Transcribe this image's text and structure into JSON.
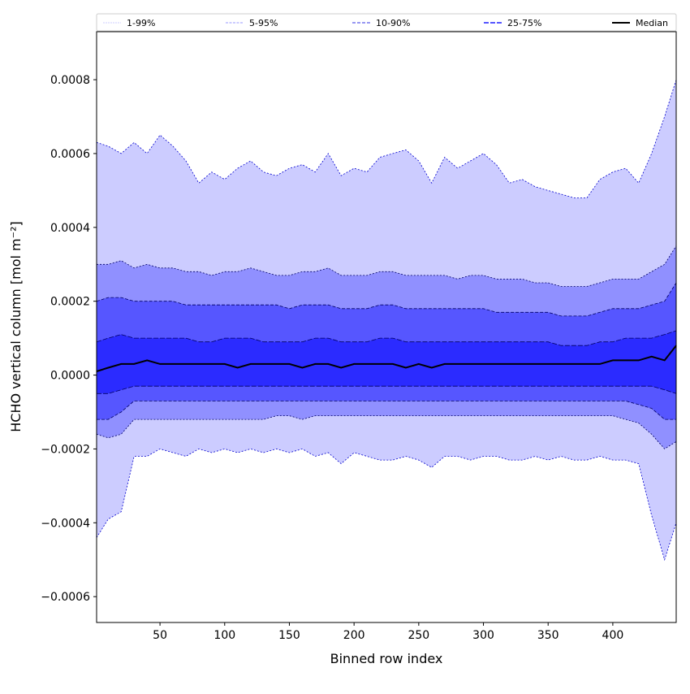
{
  "chart_data": {
    "type": "area",
    "title": "",
    "xlabel": "Binned row index",
    "ylabel": "HCHO vertical column [mol m⁻²]",
    "xlim": [
      1,
      449
    ],
    "ylim": [
      -0.00067,
      0.00093
    ],
    "xticks": [
      50,
      100,
      150,
      200,
      250,
      300,
      350,
      400
    ],
    "xtick_labels": [
      "50",
      "100",
      "150",
      "200",
      "250",
      "300",
      "350",
      "400"
    ],
    "yticks": [
      -0.0006,
      -0.0004,
      -0.0002,
      0,
      0.0002,
      0.0004,
      0.0006,
      0.0008
    ],
    "ytick_labels": [
      "−0.0006",
      "−0.0004",
      "−0.0002",
      "0.0000",
      "0.0002",
      "0.0004",
      "0.0006",
      "0.0008"
    ],
    "grid": false,
    "legend_placement": "top, above plot, single row",
    "legend": [
      "1-99%",
      "5-95%",
      "10-90%",
      "25-75%",
      "Median"
    ],
    "values_scale": 0.0001,
    "x": [
      1,
      10,
      20,
      30,
      40,
      50,
      60,
      70,
      80,
      90,
      100,
      110,
      120,
      130,
      140,
      150,
      160,
      170,
      180,
      190,
      200,
      210,
      220,
      230,
      240,
      250,
      260,
      270,
      280,
      290,
      300,
      310,
      320,
      330,
      340,
      350,
      360,
      370,
      380,
      390,
      400,
      410,
      420,
      430,
      440,
      449
    ],
    "series": {
      "p99": [
        6.3,
        6.2,
        6.0,
        6.3,
        6.0,
        6.5,
        6.2,
        5.8,
        5.2,
        5.5,
        5.3,
        5.6,
        5.8,
        5.5,
        5.4,
        5.6,
        5.7,
        5.5,
        6.0,
        5.4,
        5.6,
        5.5,
        5.9,
        6.0,
        6.1,
        5.8,
        5.2,
        5.9,
        5.6,
        5.8,
        6.0,
        5.7,
        5.2,
        5.3,
        5.1,
        5.0,
        4.9,
        4.8,
        4.8,
        5.3,
        5.5,
        5.6,
        5.2,
        6.0,
        7.0,
        8.0
      ],
      "p95": [
        3.0,
        3.0,
        3.1,
        2.9,
        3.0,
        2.9,
        2.9,
        2.8,
        2.8,
        2.7,
        2.8,
        2.8,
        2.9,
        2.8,
        2.7,
        2.7,
        2.8,
        2.8,
        2.9,
        2.7,
        2.7,
        2.7,
        2.8,
        2.8,
        2.7,
        2.7,
        2.7,
        2.7,
        2.6,
        2.7,
        2.7,
        2.6,
        2.6,
        2.6,
        2.5,
        2.5,
        2.4,
        2.4,
        2.4,
        2.5,
        2.6,
        2.6,
        2.6,
        2.8,
        3.0,
        3.5
      ],
      "p90": [
        2.0,
        2.1,
        2.1,
        2.0,
        2.0,
        2.0,
        2.0,
        1.9,
        1.9,
        1.9,
        1.9,
        1.9,
        1.9,
        1.9,
        1.9,
        1.8,
        1.9,
        1.9,
        1.9,
        1.8,
        1.8,
        1.8,
        1.9,
        1.9,
        1.8,
        1.8,
        1.8,
        1.8,
        1.8,
        1.8,
        1.8,
        1.7,
        1.7,
        1.7,
        1.7,
        1.7,
        1.6,
        1.6,
        1.6,
        1.7,
        1.8,
        1.8,
        1.8,
        1.9,
        2.0,
        2.5
      ],
      "p75": [
        0.9,
        1.0,
        1.1,
        1.0,
        1.0,
        1.0,
        1.0,
        1.0,
        0.9,
        0.9,
        1.0,
        1.0,
        1.0,
        0.9,
        0.9,
        0.9,
        0.9,
        1.0,
        1.0,
        0.9,
        0.9,
        0.9,
        1.0,
        1.0,
        0.9,
        0.9,
        0.9,
        0.9,
        0.9,
        0.9,
        0.9,
        0.9,
        0.9,
        0.9,
        0.9,
        0.9,
        0.8,
        0.8,
        0.8,
        0.9,
        0.9,
        1.0,
        1.0,
        1.0,
        1.1,
        1.2
      ],
      "median": [
        0.1,
        0.2,
        0.3,
        0.3,
        0.4,
        0.3,
        0.3,
        0.3,
        0.3,
        0.3,
        0.3,
        0.2,
        0.3,
        0.3,
        0.3,
        0.3,
        0.2,
        0.3,
        0.3,
        0.2,
        0.3,
        0.3,
        0.3,
        0.3,
        0.2,
        0.3,
        0.2,
        0.3,
        0.3,
        0.3,
        0.3,
        0.3,
        0.3,
        0.3,
        0.3,
        0.3,
        0.3,
        0.3,
        0.3,
        0.3,
        0.4,
        0.4,
        0.4,
        0.5,
        0.4,
        0.8
      ],
      "p25": [
        -0.5,
        -0.5,
        -0.4,
        -0.3,
        -0.3,
        -0.3,
        -0.3,
        -0.3,
        -0.3,
        -0.3,
        -0.3,
        -0.3,
        -0.3,
        -0.3,
        -0.3,
        -0.3,
        -0.3,
        -0.3,
        -0.3,
        -0.3,
        -0.3,
        -0.3,
        -0.3,
        -0.3,
        -0.3,
        -0.3,
        -0.3,
        -0.3,
        -0.3,
        -0.3,
        -0.3,
        -0.3,
        -0.3,
        -0.3,
        -0.3,
        -0.3,
        -0.3,
        -0.3,
        -0.3,
        -0.3,
        -0.3,
        -0.3,
        -0.3,
        -0.3,
        -0.4,
        -0.5
      ],
      "p10": [
        -1.2,
        -1.2,
        -1.0,
        -0.7,
        -0.7,
        -0.7,
        -0.7,
        -0.7,
        -0.7,
        -0.7,
        -0.7,
        -0.7,
        -0.7,
        -0.7,
        -0.7,
        -0.7,
        -0.7,
        -0.7,
        -0.7,
        -0.7,
        -0.7,
        -0.7,
        -0.7,
        -0.7,
        -0.7,
        -0.7,
        -0.7,
        -0.7,
        -0.7,
        -0.7,
        -0.7,
        -0.7,
        -0.7,
        -0.7,
        -0.7,
        -0.7,
        -0.7,
        -0.7,
        -0.7,
        -0.7,
        -0.7,
        -0.7,
        -0.8,
        -0.9,
        -1.2,
        -1.2
      ],
      "p5": [
        -1.6,
        -1.7,
        -1.6,
        -1.2,
        -1.2,
        -1.2,
        -1.2,
        -1.2,
        -1.2,
        -1.2,
        -1.2,
        -1.2,
        -1.2,
        -1.2,
        -1.1,
        -1.1,
        -1.2,
        -1.1,
        -1.1,
        -1.1,
        -1.1,
        -1.1,
        -1.1,
        -1.1,
        -1.1,
        -1.1,
        -1.1,
        -1.1,
        -1.1,
        -1.1,
        -1.1,
        -1.1,
        -1.1,
        -1.1,
        -1.1,
        -1.1,
        -1.1,
        -1.1,
        -1.1,
        -1.1,
        -1.1,
        -1.2,
        -1.3,
        -1.6,
        -2.0,
        -1.8
      ],
      "p1": [
        -4.4,
        -3.9,
        -3.7,
        -2.2,
        -2.2,
        -2.0,
        -2.1,
        -2.2,
        -2.0,
        -2.1,
        -2.0,
        -2.1,
        -2.0,
        -2.1,
        -2.0,
        -2.1,
        -2.0,
        -2.2,
        -2.1,
        -2.4,
        -2.1,
        -2.2,
        -2.3,
        -2.3,
        -2.2,
        -2.3,
        -2.5,
        -2.2,
        -2.2,
        -2.3,
        -2.2,
        -2.2,
        -2.3,
        -2.3,
        -2.2,
        -2.3,
        -2.2,
        -2.3,
        -2.3,
        -2.2,
        -2.3,
        -2.3,
        -2.4,
        -3.8,
        -5.0,
        -4.0
      ]
    },
    "bands": [
      {
        "name": "1-99%",
        "lower": "p1",
        "upper": "p99",
        "fill": "#ccccff",
        "line": "#ccccff"
      },
      {
        "name": "5-95%",
        "lower": "p5",
        "upper": "p95",
        "fill": "#9090ff",
        "line": "#9999ff"
      },
      {
        "name": "10-90%",
        "lower": "p10",
        "upper": "p90",
        "fill": "#5656ff",
        "line": "#7777ee"
      },
      {
        "name": "25-75%",
        "lower": "p25",
        "upper": "p75",
        "fill": "#2b2bff",
        "line": "#5555ff"
      }
    ],
    "median_color": "#000000"
  }
}
